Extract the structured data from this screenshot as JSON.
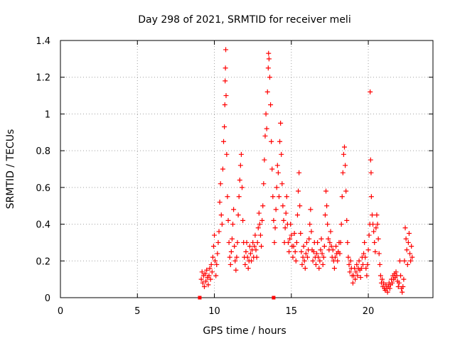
{
  "chart_data": {
    "type": "scatter",
    "title": "Day 298 of 2021, SRMTID for receiver meli",
    "xlabel": "GPS time / hours",
    "ylabel": "SRMTID / TECUs",
    "xlim": [
      0,
      24.2
    ],
    "ylim": [
      0,
      1.4
    ],
    "x_ticks": [
      0,
      5,
      10,
      15,
      20
    ],
    "y_ticks": [
      0,
      0.2,
      0.4,
      0.6,
      0.8,
      1.0,
      1.2,
      1.4
    ],
    "x_tick_labels": [
      "0",
      "5",
      "10",
      "15",
      "20"
    ],
    "y_tick_labels": [
      "0",
      "0.2",
      "0.4",
      "0.6",
      "0.8",
      "1",
      "1.2",
      "1.4"
    ],
    "grid": true,
    "marker": "+",
    "colors": {
      "series": "#ff0000",
      "grid": "#a0a0a0",
      "axis": "#000000"
    },
    "series": [
      {
        "name": "SRMTID",
        "points": [
          [
            9.15,
            0.1
          ],
          [
            9.2,
            0.14
          ],
          [
            9.25,
            0.08
          ],
          [
            9.3,
            0.12
          ],
          [
            9.35,
            0.06
          ],
          [
            9.4,
            0.13
          ],
          [
            9.45,
            0.09
          ],
          [
            9.5,
            0.15
          ],
          [
            9.55,
            0.11
          ],
          [
            9.6,
            0.07
          ],
          [
            9.65,
            0.12
          ],
          [
            9.7,
            0.16
          ],
          [
            9.75,
            0.1
          ],
          [
            9.8,
            0.18
          ],
          [
            9.85,
            0.14
          ],
          [
            9.9,
            0.22
          ],
          [
            9.95,
            0.28
          ],
          [
            10.0,
            0.34
          ],
          [
            10.05,
            0.2
          ],
          [
            10.1,
            0.12
          ],
          [
            10.15,
            0.18
          ],
          [
            10.2,
            0.24
          ],
          [
            10.25,
            0.3
          ],
          [
            10.3,
            0.36
          ],
          [
            10.35,
            0.52
          ],
          [
            10.4,
            0.62
          ],
          [
            10.45,
            0.45
          ],
          [
            10.5,
            0.4
          ],
          [
            10.55,
            0.7
          ],
          [
            10.6,
            0.85
          ],
          [
            10.65,
            0.93
          ],
          [
            10.68,
            1.05
          ],
          [
            10.7,
            1.18
          ],
          [
            10.72,
            1.25
          ],
          [
            10.74,
            1.35
          ],
          [
            10.76,
            1.1
          ],
          [
            10.8,
            0.78
          ],
          [
            10.85,
            0.55
          ],
          [
            10.9,
            0.42
          ],
          [
            10.95,
            0.3
          ],
          [
            11.0,
            0.22
          ],
          [
            11.05,
            0.18
          ],
          [
            11.1,
            0.25
          ],
          [
            11.15,
            0.32
          ],
          [
            11.2,
            0.4
          ],
          [
            11.25,
            0.48
          ],
          [
            11.3,
            0.28
          ],
          [
            11.35,
            0.2
          ],
          [
            11.4,
            0.15
          ],
          [
            11.45,
            0.22
          ],
          [
            11.5,
            0.3
          ],
          [
            11.55,
            0.45
          ],
          [
            11.6,
            0.55
          ],
          [
            11.65,
            0.64
          ],
          [
            11.7,
            0.72
          ],
          [
            11.75,
            0.78
          ],
          [
            11.8,
            0.6
          ],
          [
            11.85,
            0.42
          ],
          [
            11.9,
            0.3
          ],
          [
            11.95,
            0.22
          ],
          [
            12.0,
            0.18
          ],
          [
            12.05,
            0.25
          ],
          [
            12.1,
            0.3
          ],
          [
            12.15,
            0.22
          ],
          [
            12.2,
            0.16
          ],
          [
            12.25,
            0.2
          ],
          [
            12.3,
            0.28
          ],
          [
            12.35,
            0.24
          ],
          [
            12.4,
            0.2
          ],
          [
            12.45,
            0.26
          ],
          [
            12.5,
            0.3
          ],
          [
            12.55,
            0.22
          ],
          [
            12.6,
            0.28
          ],
          [
            12.65,
            0.34
          ],
          [
            12.7,
            0.26
          ],
          [
            12.75,
            0.22
          ],
          [
            12.8,
            0.3
          ],
          [
            12.85,
            0.38
          ],
          [
            12.9,
            0.46
          ],
          [
            12.95,
            0.4
          ],
          [
            13.0,
            0.34
          ],
          [
            13.05,
            0.28
          ],
          [
            13.1,
            0.42
          ],
          [
            13.15,
            0.5
          ],
          [
            13.2,
            0.62
          ],
          [
            13.25,
            0.75
          ],
          [
            13.3,
            0.88
          ],
          [
            13.35,
            1.0
          ],
          [
            13.4,
            0.92
          ],
          [
            13.45,
            1.12
          ],
          [
            13.5,
            1.25
          ],
          [
            13.52,
            1.33
          ],
          [
            13.55,
            1.3
          ],
          [
            13.6,
            1.2
          ],
          [
            13.65,
            1.05
          ],
          [
            13.7,
            0.85
          ],
          [
            13.75,
            0.7
          ],
          [
            13.8,
            0.55
          ],
          [
            13.85,
            0.42
          ],
          [
            13.9,
            0.3
          ],
          [
            13.95,
            0.38
          ],
          [
            14.0,
            0.48
          ],
          [
            14.05,
            0.6
          ],
          [
            14.1,
            0.72
          ],
          [
            14.15,
            0.68
          ],
          [
            14.2,
            0.55
          ],
          [
            14.25,
            0.85
          ],
          [
            14.3,
            0.95
          ],
          [
            14.35,
            0.78
          ],
          [
            14.4,
            0.62
          ],
          [
            14.45,
            0.5
          ],
          [
            14.5,
            0.42
          ],
          [
            14.55,
            0.3
          ],
          [
            14.6,
            0.38
          ],
          [
            14.65,
            0.46
          ],
          [
            14.7,
            0.55
          ],
          [
            14.75,
            0.4
          ],
          [
            14.8,
            0.3
          ],
          [
            14.85,
            0.25
          ],
          [
            14.9,
            0.32
          ],
          [
            14.95,
            0.4
          ],
          [
            15.0,
            0.34
          ],
          [
            15.05,
            0.28
          ],
          [
            15.1,
            0.22
          ],
          [
            15.15,
            0.28
          ],
          [
            15.2,
            0.35
          ],
          [
            15.25,
            0.25
          ],
          [
            15.3,
            0.2
          ],
          [
            15.35,
            0.3
          ],
          [
            15.4,
            0.45
          ],
          [
            15.45,
            0.58
          ],
          [
            15.5,
            0.68
          ],
          [
            15.55,
            0.5
          ],
          [
            15.6,
            0.35
          ],
          [
            15.65,
            0.25
          ],
          [
            15.7,
            0.18
          ],
          [
            15.75,
            0.22
          ],
          [
            15.8,
            0.28
          ],
          [
            15.85,
            0.2
          ],
          [
            15.9,
            0.16
          ],
          [
            15.95,
            0.24
          ],
          [
            16.0,
            0.3
          ],
          [
            16.05,
            0.22
          ],
          [
            16.1,
            0.26
          ],
          [
            16.15,
            0.32
          ],
          [
            16.2,
            0.4
          ],
          [
            16.25,
            0.48
          ],
          [
            16.3,
            0.36
          ],
          [
            16.35,
            0.26
          ],
          [
            16.4,
            0.2
          ],
          [
            16.45,
            0.25
          ],
          [
            16.5,
            0.3
          ],
          [
            16.55,
            0.22
          ],
          [
            16.6,
            0.18
          ],
          [
            16.65,
            0.24
          ],
          [
            16.7,
            0.3
          ],
          [
            16.75,
            0.22
          ],
          [
            16.8,
            0.16
          ],
          [
            16.85,
            0.2
          ],
          [
            16.9,
            0.26
          ],
          [
            16.95,
            0.32
          ],
          [
            17.0,
            0.24
          ],
          [
            17.05,
            0.18
          ],
          [
            17.1,
            0.22
          ],
          [
            17.15,
            0.28
          ],
          [
            17.2,
            0.45
          ],
          [
            17.25,
            0.58
          ],
          [
            17.3,
            0.5
          ],
          [
            17.35,
            0.4
          ],
          [
            17.4,
            0.32
          ],
          [
            17.45,
            0.26
          ],
          [
            17.5,
            0.3
          ],
          [
            17.55,
            0.36
          ],
          [
            17.6,
            0.28
          ],
          [
            17.65,
            0.22
          ],
          [
            17.7,
            0.26
          ],
          [
            17.75,
            0.2
          ],
          [
            17.8,
            0.16
          ],
          [
            17.85,
            0.22
          ],
          [
            17.9,
            0.28
          ],
          [
            17.95,
            0.24
          ],
          [
            18.0,
            0.2
          ],
          [
            18.05,
            0.25
          ],
          [
            18.1,
            0.3
          ],
          [
            18.15,
            0.24
          ],
          [
            18.2,
            0.3
          ],
          [
            18.25,
            0.4
          ],
          [
            18.3,
            0.55
          ],
          [
            18.35,
            0.68
          ],
          [
            18.4,
            0.78
          ],
          [
            18.45,
            0.82
          ],
          [
            18.5,
            0.72
          ],
          [
            18.55,
            0.58
          ],
          [
            18.6,
            0.42
          ],
          [
            18.65,
            0.3
          ],
          [
            18.7,
            0.22
          ],
          [
            18.75,
            0.18
          ],
          [
            18.8,
            0.14
          ],
          [
            18.85,
            0.2
          ],
          [
            18.9,
            0.16
          ],
          [
            18.95,
            0.12
          ],
          [
            19.0,
            0.08
          ],
          [
            19.05,
            0.12
          ],
          [
            19.1,
            0.16
          ],
          [
            19.15,
            0.1
          ],
          [
            19.2,
            0.14
          ],
          [
            19.25,
            0.18
          ],
          [
            19.3,
            0.12
          ],
          [
            19.35,
            0.16
          ],
          [
            19.4,
            0.2
          ],
          [
            19.45,
            0.15
          ],
          [
            19.5,
            0.11
          ],
          [
            19.55,
            0.16
          ],
          [
            19.6,
            0.22
          ],
          [
            19.65,
            0.18
          ],
          [
            19.7,
            0.24
          ],
          [
            19.75,
            0.3
          ],
          [
            19.8,
            0.22
          ],
          [
            19.85,
            0.16
          ],
          [
            19.9,
            0.12
          ],
          [
            19.95,
            0.18
          ],
          [
            20.0,
            0.26
          ],
          [
            20.05,
            0.34
          ],
          [
            20.1,
            0.4
          ],
          [
            20.12,
            1.12
          ],
          [
            20.15,
            0.75
          ],
          [
            20.18,
            0.68
          ],
          [
            20.2,
            0.55
          ],
          [
            20.25,
            0.45
          ],
          [
            20.3,
            0.4
          ],
          [
            20.35,
            0.36
          ],
          [
            20.4,
            0.3
          ],
          [
            20.45,
            0.25
          ],
          [
            20.5,
            0.38
          ],
          [
            20.55,
            0.45
          ],
          [
            20.6,
            0.4
          ],
          [
            20.65,
            0.32
          ],
          [
            20.7,
            0.24
          ],
          [
            20.75,
            0.18
          ],
          [
            20.8,
            0.12
          ],
          [
            20.85,
            0.08
          ],
          [
            20.9,
            0.1
          ],
          [
            20.95,
            0.06
          ],
          [
            21.0,
            0.08
          ],
          [
            21.05,
            0.05
          ],
          [
            21.1,
            0.04
          ],
          [
            21.15,
            0.07
          ],
          [
            21.2,
            0.05
          ],
          [
            21.25,
            0.03
          ],
          [
            21.3,
            0.06
          ],
          [
            21.35,
            0.08
          ],
          [
            21.4,
            0.05
          ],
          [
            21.45,
            0.07
          ],
          [
            21.5,
            0.1
          ],
          [
            21.55,
            0.08
          ],
          [
            21.6,
            0.12
          ],
          [
            21.65,
            0.1
          ],
          [
            21.7,
            0.13
          ],
          [
            21.75,
            0.11
          ],
          [
            21.8,
            0.14
          ],
          [
            21.85,
            0.12
          ],
          [
            21.9,
            0.09
          ],
          [
            21.95,
            0.06
          ],
          [
            22.0,
            0.08
          ],
          [
            22.05,
            0.2
          ],
          [
            22.1,
            0.12
          ],
          [
            22.15,
            0.05
          ],
          [
            22.2,
            0.03
          ],
          [
            22.25,
            0.06
          ],
          [
            22.3,
            0.1
          ],
          [
            22.35,
            0.2
          ],
          [
            22.4,
            0.38
          ],
          [
            22.45,
            0.32
          ],
          [
            22.5,
            0.26
          ],
          [
            22.55,
            0.18
          ],
          [
            22.6,
            0.3
          ],
          [
            22.65,
            0.35
          ],
          [
            22.7,
            0.24
          ],
          [
            22.75,
            0.2
          ],
          [
            22.8,
            0.28
          ],
          [
            22.85,
            0.22
          ]
        ]
      }
    ],
    "baseline_markers": [
      [
        9.05,
        0.0
      ],
      [
        13.85,
        0.0
      ]
    ]
  }
}
